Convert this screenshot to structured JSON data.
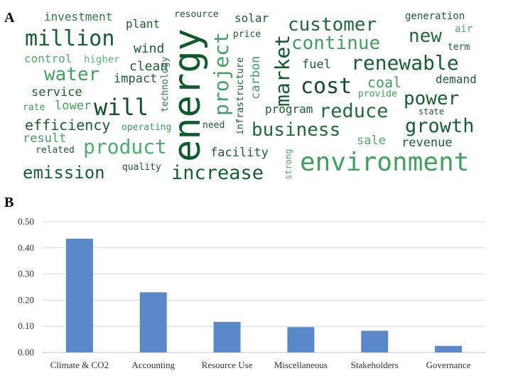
{
  "panel_a_label": "A",
  "panel_b_label": "B",
  "wordcloud": [
    {
      "text": "investment",
      "color": "#2e7d45"
    },
    {
      "text": "plant",
      "color": "#1b5e33"
    },
    {
      "text": "resource",
      "color": "#1b5e33"
    },
    {
      "text": "solar",
      "color": "#1b5e33"
    },
    {
      "text": "customer",
      "color": "#1f6b3a"
    },
    {
      "text": "generation",
      "color": "#1b5e33"
    },
    {
      "text": "air",
      "color": "#4caf6a"
    },
    {
      "text": "million",
      "color": "#155f33"
    },
    {
      "text": "energy",
      "color": "#0f5a2b"
    },
    {
      "text": "project",
      "color": "#3fa25e"
    },
    {
      "text": "price",
      "color": "#1b5e33"
    },
    {
      "text": "market",
      "color": "#0f5a2b"
    },
    {
      "text": "continue",
      "color": "#3fa25e"
    },
    {
      "text": "new",
      "color": "#1f6b3a"
    },
    {
      "text": "wind",
      "color": "#1b5e33"
    },
    {
      "text": "term",
      "color": "#1b5e33"
    },
    {
      "text": "control",
      "color": "#4caf6a"
    },
    {
      "text": "higher",
      "color": "#5cbf7a"
    },
    {
      "text": "clean",
      "color": "#1b5e33"
    },
    {
      "text": "technology",
      "color": "#2e7d45"
    },
    {
      "text": "infrastructure",
      "color": "#1b5e33"
    },
    {
      "text": "carbon",
      "color": "#3fa25e"
    },
    {
      "text": "fuel",
      "color": "#1b5e33"
    },
    {
      "text": "renewable",
      "color": "#155f33"
    },
    {
      "text": "water",
      "color": "#3fa25e"
    },
    {
      "text": "impact",
      "color": "#1b5e33"
    },
    {
      "text": "coal",
      "color": "#3fa25e"
    },
    {
      "text": "demand",
      "color": "#1b5e33"
    },
    {
      "text": "cost",
      "color": "#0f4d26"
    },
    {
      "text": "service",
      "color": "#1b5e33"
    },
    {
      "text": "provide",
      "color": "#3fa25e"
    },
    {
      "text": "power",
      "color": "#155f33"
    },
    {
      "text": "will",
      "color": "#0f4d26"
    },
    {
      "text": "rate",
      "color": "#3fa25e"
    },
    {
      "text": "lower",
      "color": "#3fa25e"
    },
    {
      "text": "program",
      "color": "#1b5e33"
    },
    {
      "text": "reduce",
      "color": "#1f6b3a"
    },
    {
      "text": "state",
      "color": "#1b5e33"
    },
    {
      "text": "efficiency",
      "color": "#155f33"
    },
    {
      "text": "operating",
      "color": "#3fa25e"
    },
    {
      "text": "need",
      "color": "#1b5e33"
    },
    {
      "text": "business",
      "color": "#1f6b3a"
    },
    {
      "text": "growth",
      "color": "#155f33"
    },
    {
      "text": "result",
      "color": "#3fa25e"
    },
    {
      "text": "sale",
      "color": "#4caf6a"
    },
    {
      "text": "revenue",
      "color": "#1b5e33"
    },
    {
      "text": "related",
      "color": "#1b5e33"
    },
    {
      "text": "product",
      "color": "#4caf6a"
    },
    {
      "text": "strong",
      "color": "#4caf6a"
    },
    {
      "text": "facility",
      "color": "#1b5e33"
    },
    {
      "text": "environment",
      "color": "#3fa25e"
    },
    {
      "text": "emission",
      "color": "#155f33"
    },
    {
      "text": "quality",
      "color": "#1b5e33"
    },
    {
      "text": "increase",
      "color": "#155f33"
    }
  ],
  "chart_data": {
    "type": "bar",
    "categories": [
      "Climate & CO2",
      "Accounting",
      "Resource Use",
      "Miscellaneous",
      "Stakeholders",
      "Governance"
    ],
    "values": [
      0.435,
      0.23,
      0.117,
      0.097,
      0.083,
      0.025
    ],
    "ylim": [
      0,
      0.5
    ],
    "yticks": [
      "0.00",
      "0.10",
      "0.20",
      "0.30",
      "0.40",
      "0.50"
    ],
    "grid": true,
    "bar_color": "#5b88c8",
    "xlabel": "",
    "ylabel": ""
  }
}
